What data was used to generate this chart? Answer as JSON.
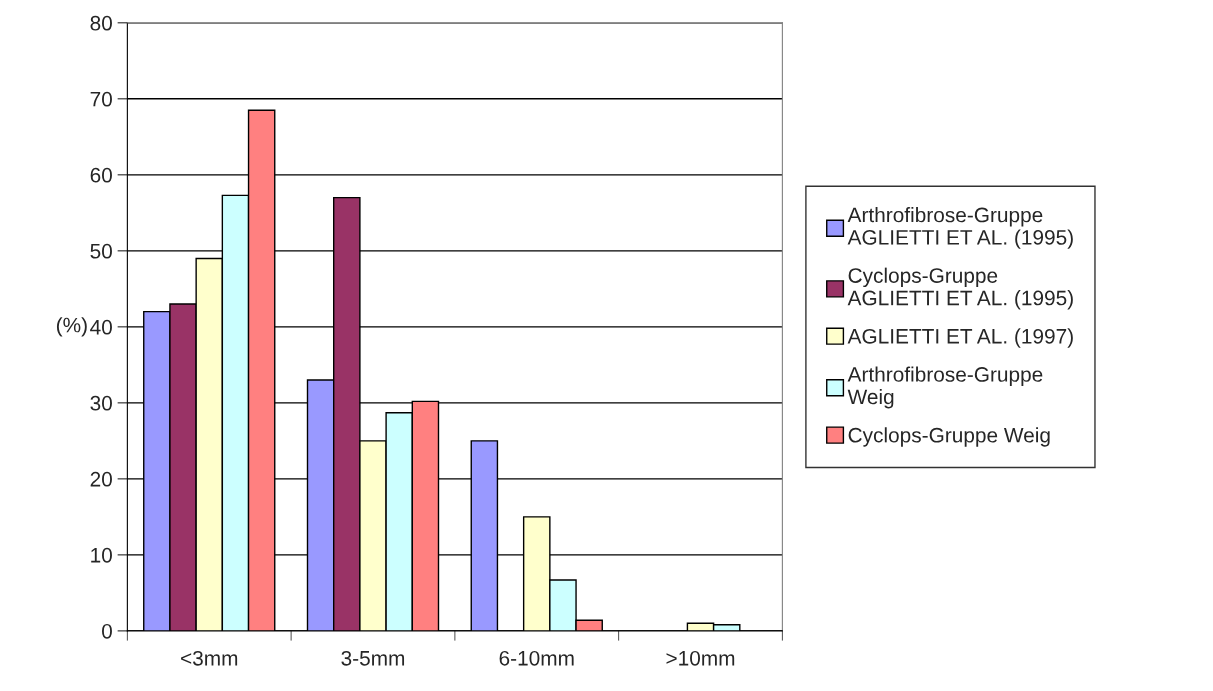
{
  "chart_data": {
    "type": "bar",
    "ylabel": "(%)",
    "categories": [
      "<3mm",
      "3-5mm",
      "6-10mm",
      ">10mm"
    ],
    "series": [
      {
        "name": "Arthrofibrose-Gruppe\nAGLIETTI ET AL. (1995)",
        "color": "#9999ff",
        "values": [
          42,
          33,
          25,
          null
        ]
      },
      {
        "name": "Cyclops-Gruppe\nAGLIETTI ET AL. (1995)",
        "color": "#993366",
        "values": [
          43,
          57,
          null,
          null
        ]
      },
      {
        "name": "AGLIETTI ET AL. (1997)",
        "color": "#ffffcc",
        "values": [
          49,
          25,
          15,
          1
        ]
      },
      {
        "name": "Arthrofibrose-Gruppe\nWeig",
        "color": "#ccffff",
        "values": [
          57.3,
          28.7,
          6.7,
          0.8
        ]
      },
      {
        "name": "Cyclops-Gruppe Weig",
        "color": "#ff8080",
        "values": [
          68.5,
          30.2,
          1.4,
          null
        ]
      }
    ],
    "ylim": [
      0,
      80
    ],
    "yticks": [
      0,
      10,
      20,
      30,
      40,
      50,
      60,
      70,
      80
    ],
    "grid": "y",
    "legend": "right"
  }
}
